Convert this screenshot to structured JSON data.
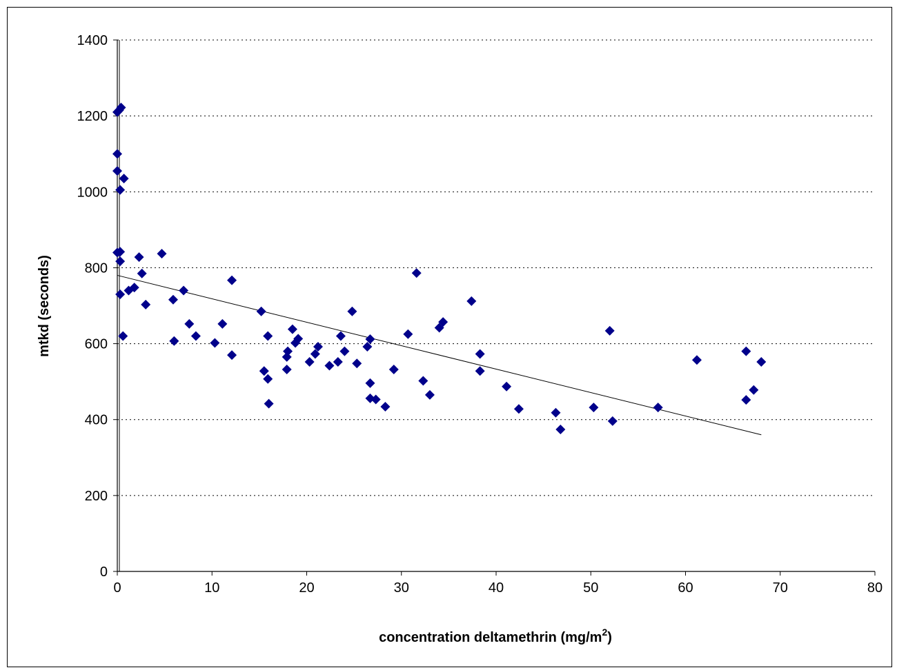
{
  "chart_data": {
    "type": "scatter",
    "title": "",
    "xlabel": "concentration deltamethrin (mg/m",
    "xlabel_sup": "2",
    "xlabel_close": ")",
    "ylabel": "mtkd  (seconds)",
    "xlim": [
      0,
      80
    ],
    "ylim": [
      0,
      1400
    ],
    "xticks": [
      "0",
      "10",
      "20",
      "30",
      "40",
      "50",
      "60",
      "70",
      "80"
    ],
    "yticks": [
      "0",
      "200",
      "400",
      "600",
      "800",
      "1000",
      "1200",
      "1400"
    ],
    "grid": "horizontal-dotted",
    "legend": "none",
    "marker_color": "#00008B",
    "trendline": {
      "x": [
        0,
        68
      ],
      "y": [
        780,
        360
      ]
    },
    "series": [
      {
        "x": [
          0,
          0.2,
          0.4,
          0.0,
          0.0,
          0.7,
          0.3,
          0.0,
          0.3,
          0.3,
          0.3,
          0.6,
          1.2,
          1.8,
          2.3,
          2.6,
          3.0,
          4.7,
          5.9,
          6.0,
          7.0,
          7.6,
          8.3,
          10.3,
          11.1,
          12.1,
          12.1,
          15.2,
          15.5,
          15.9,
          16.0,
          15.9,
          17.9,
          17.9,
          18.0,
          18.5,
          18.8,
          19.1,
          20.3,
          20.9,
          21.2,
          22.4,
          23.3,
          23.6,
          24.0,
          24.8,
          25.3,
          26.4,
          26.7,
          26.7,
          26.7,
          27.3,
          28.3,
          29.2,
          30.7,
          31.6,
          32.3,
          33.0,
          34.0,
          34.4,
          37.4,
          38.3,
          38.3,
          41.1,
          42.4,
          46.3,
          46.8,
          50.3,
          52.0,
          52.3,
          57.1,
          61.2,
          66.4,
          66.4,
          67.2,
          68.0
        ],
        "y": [
          1210,
          1215,
          1222,
          1100,
          1055,
          1035,
          1005,
          840,
          842,
          817,
          730,
          620,
          740,
          748,
          828,
          785,
          703,
          837,
          716,
          607,
          740,
          652,
          620,
          602,
          652,
          767,
          570,
          685,
          528,
          507,
          442,
          620,
          532,
          565,
          580,
          638,
          602,
          613,
          552,
          573,
          592,
          542,
          552,
          620,
          580,
          685,
          548,
          592,
          612,
          496,
          456,
          453,
          434,
          532,
          625,
          786,
          502,
          465,
          642,
          657,
          712,
          573,
          528,
          487,
          428,
          418,
          374,
          432,
          634,
          396,
          432,
          557,
          580,
          452,
          478,
          552
        ]
      }
    ]
  }
}
